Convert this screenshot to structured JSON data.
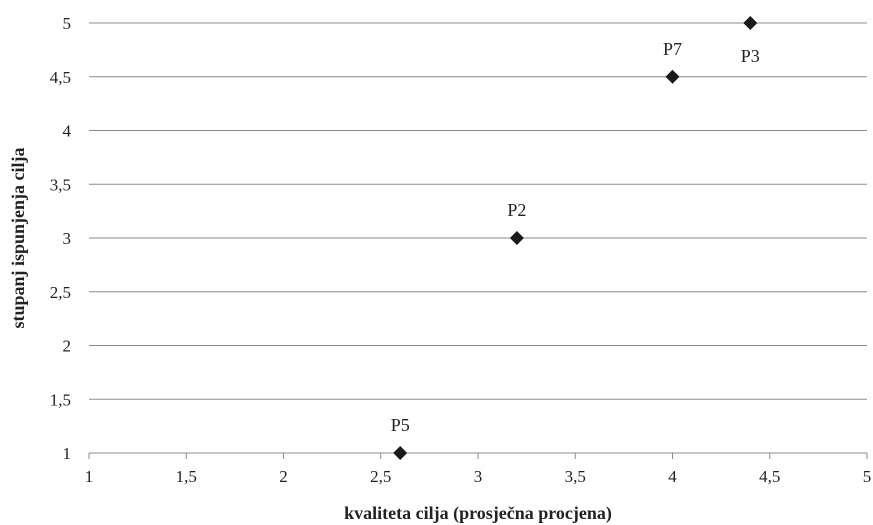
{
  "chart_data": {
    "type": "scatter",
    "xlabel": "kvaliteta cilja (prosječna procjena)",
    "ylabel": "stupanj ispunjenja cilja",
    "xlim": [
      1,
      5
    ],
    "ylim": [
      1,
      5
    ],
    "x_ticks": [
      "1",
      "1,5",
      "2",
      "2,5",
      "3",
      "3,5",
      "4",
      "4,5",
      "5"
    ],
    "y_ticks": [
      "1",
      "1,5",
      "2",
      "2,5",
      "3",
      "3,5",
      "4",
      "4,5",
      "5"
    ],
    "grid": "horizontal",
    "marker": "diamond",
    "marker_color": "#1a1a1a",
    "points": [
      {
        "label": "P3",
        "x": 4.4,
        "y": 5.0
      },
      {
        "label": "P7",
        "x": 4.0,
        "y": 4.5
      },
      {
        "label": "P2",
        "x": 3.2,
        "y": 3.0
      },
      {
        "label": "P5",
        "x": 2.6,
        "y": 1.0
      }
    ]
  }
}
